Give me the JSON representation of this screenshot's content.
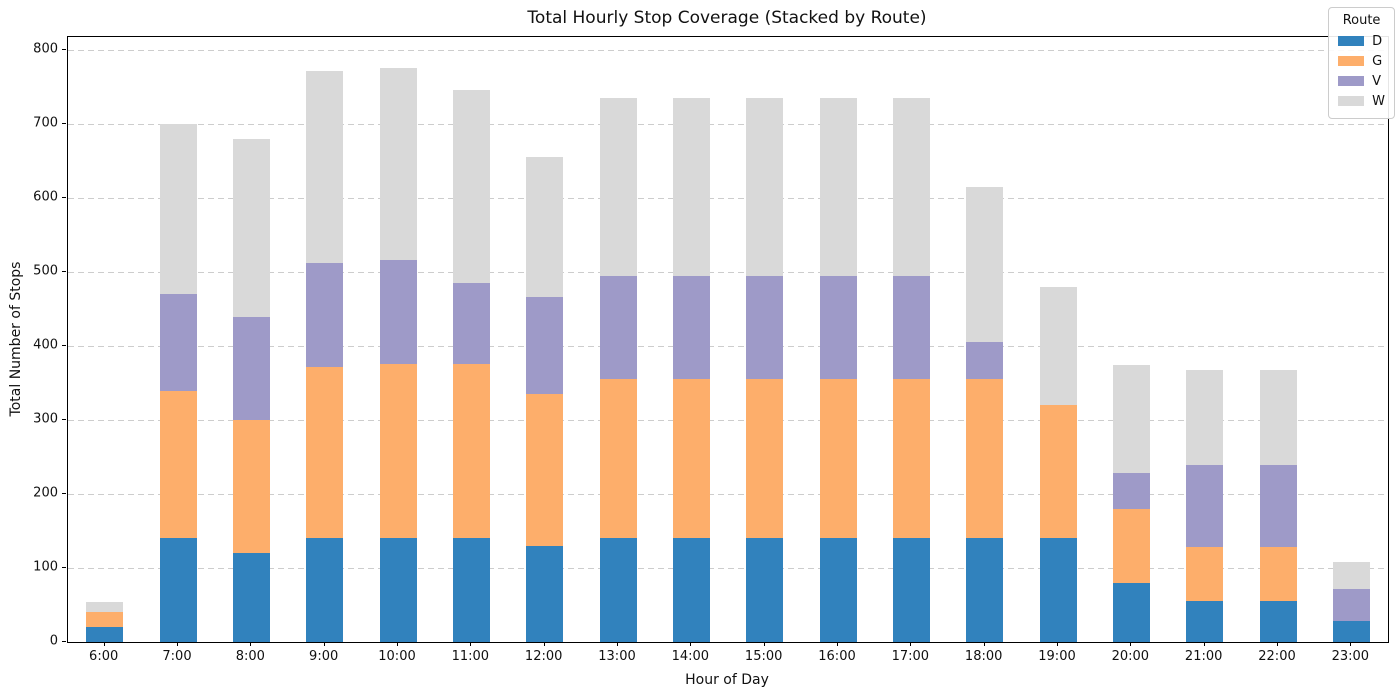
{
  "chart_data": {
    "type": "bar",
    "stacked": true,
    "title": "Total Hourly Stop Coverage (Stacked by Route)",
    "xlabel": "Hour of Day",
    "ylabel": "Total Number of Stops",
    "categories": [
      "6:00",
      "7:00",
      "8:00",
      "9:00",
      "10:00",
      "11:00",
      "12:00",
      "13:00",
      "14:00",
      "15:00",
      "16:00",
      "17:00",
      "18:00",
      "19:00",
      "20:00",
      "21:00",
      "22:00",
      "23:00"
    ],
    "series": [
      {
        "name": "D",
        "color": "#3182bd",
        "values": [
          20,
          140,
          120,
          140,
          140,
          140,
          130,
          140,
          140,
          140,
          140,
          140,
          140,
          140,
          80,
          56,
          56,
          28
        ]
      },
      {
        "name": "G",
        "color": "#fdae6b",
        "values": [
          20,
          200,
          180,
          232,
          236,
          236,
          206,
          215,
          215,
          215,
          215,
          215,
          215,
          180,
          100,
          72,
          72,
          0
        ]
      },
      {
        "name": "V",
        "color": "#9e9ac8",
        "values": [
          0,
          130,
          140,
          140,
          140,
          110,
          130,
          140,
          140,
          140,
          140,
          140,
          50,
          0,
          48,
          112,
          112,
          44
        ]
      },
      {
        "name": "W",
        "color": "#d9d9d9",
        "values": [
          14,
          230,
          240,
          260,
          260,
          260,
          190,
          240,
          240,
          240,
          240,
          240,
          210,
          160,
          146,
          128,
          128,
          36
        ]
      }
    ],
    "totals": [
      54,
      700,
      680,
      772,
      776,
      746,
      656,
      735,
      735,
      735,
      735,
      735,
      615,
      480,
      374,
      368,
      368,
      108
    ],
    "yticks": [
      0,
      100,
      200,
      300,
      400,
      500,
      600,
      700,
      800
    ],
    "ylim": [
      0,
      818
    ],
    "grid": "horizontal-dashed",
    "legend": {
      "title": "Route",
      "position": "upper-right",
      "entries": [
        "D",
        "G",
        "V",
        "W"
      ]
    }
  }
}
